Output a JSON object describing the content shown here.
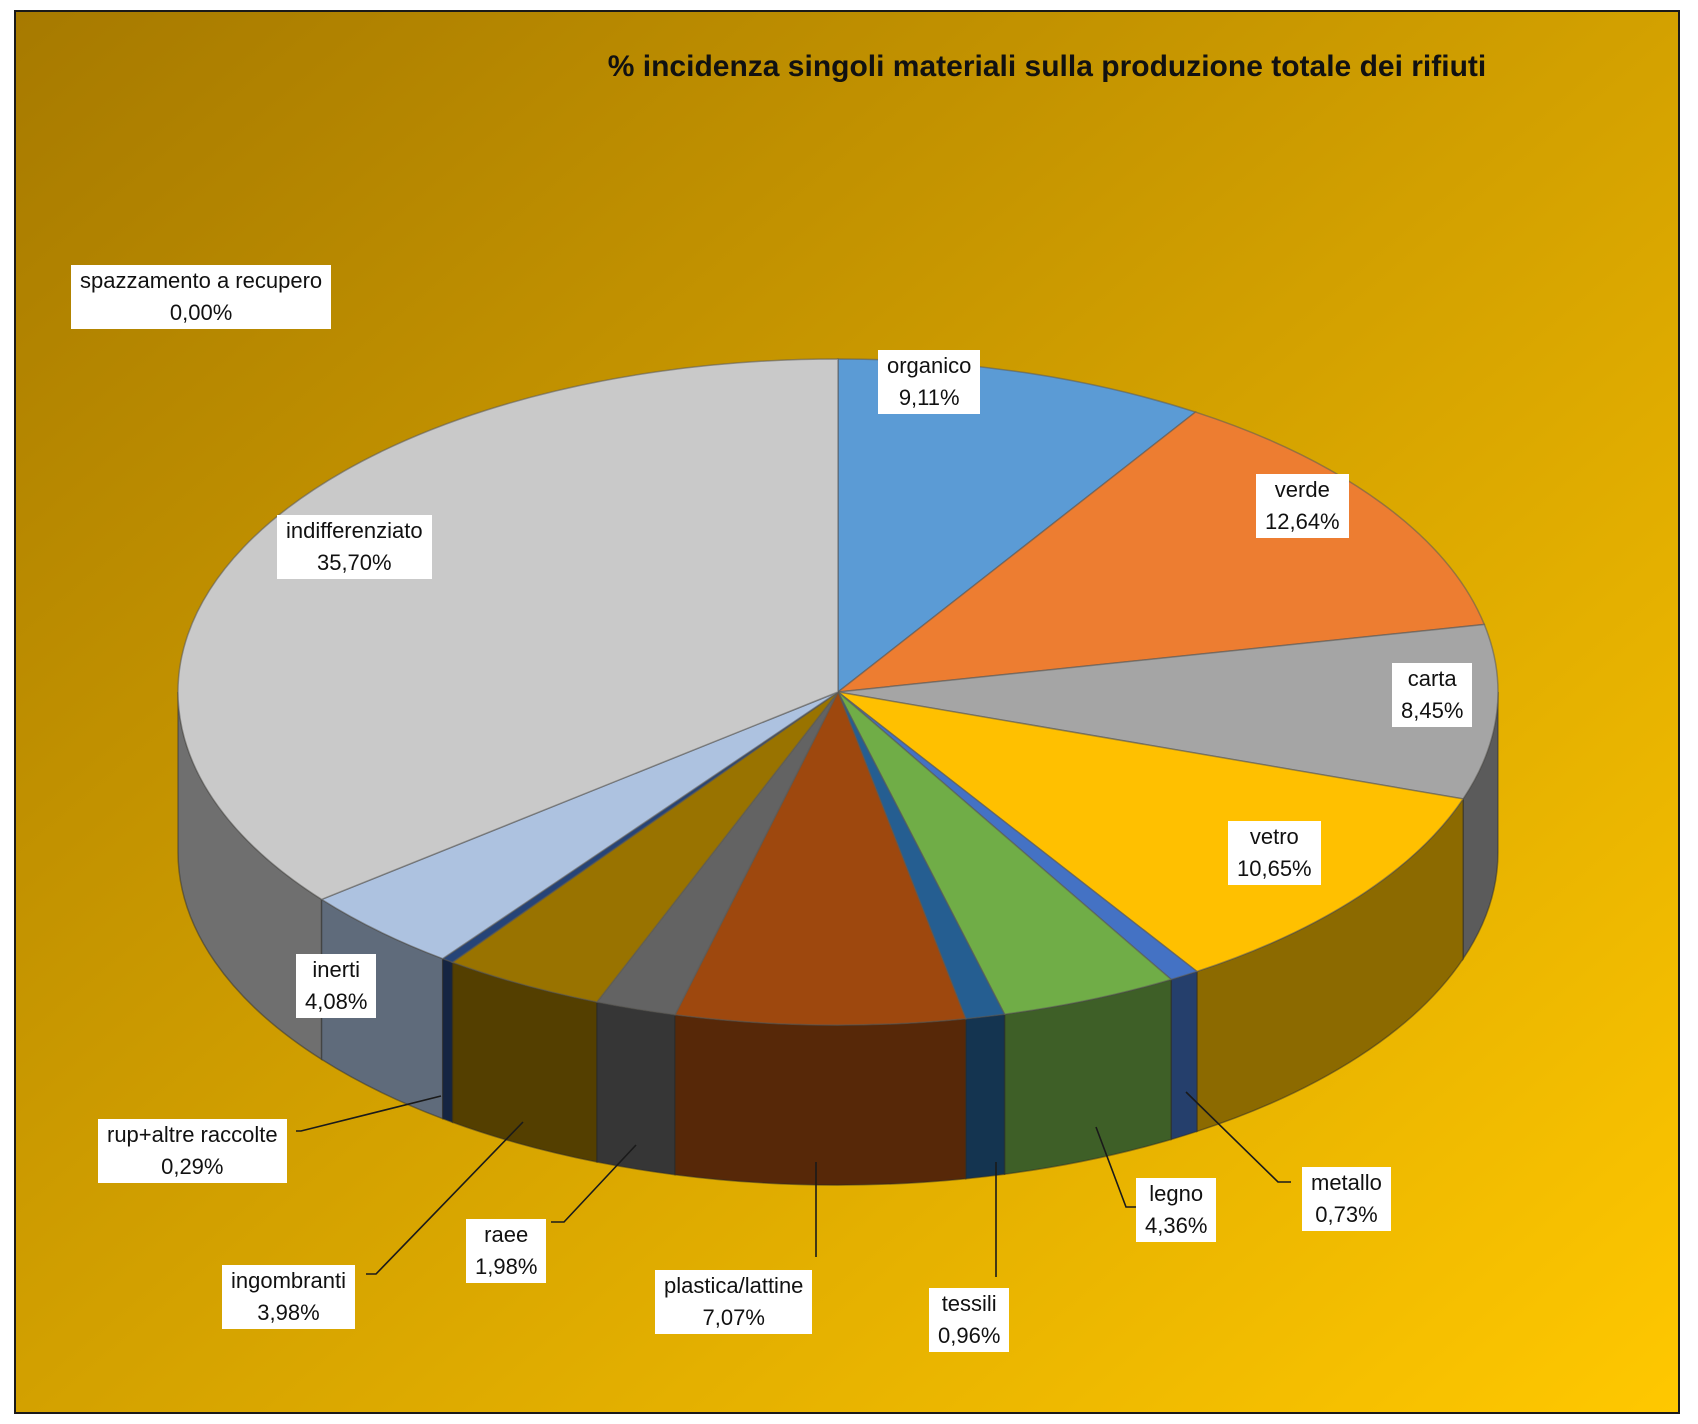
{
  "chart_data": {
    "type": "pie",
    "style": "3d",
    "title": "% incidenza singoli materiali sulla produzione totale dei rifiuti",
    "colors": {
      "background_dark": "#a77a00",
      "background_light": "#ffc800"
    },
    "slices": [
      {
        "label": "organico",
        "value": 9.11,
        "display": "9,11%",
        "color": "#5b9bd5"
      },
      {
        "label": "verde",
        "value": 12.64,
        "display": "12,64%",
        "color": "#ed7d31"
      },
      {
        "label": "carta",
        "value": 8.45,
        "display": "8,45%",
        "color": "#a5a5a5"
      },
      {
        "label": "vetro",
        "value": 10.65,
        "display": "10,65%",
        "color": "#ffc000"
      },
      {
        "label": "metallo",
        "value": 0.73,
        "display": "0,73%",
        "color": "#4472c4"
      },
      {
        "label": "legno",
        "value": 4.36,
        "display": "4,36%",
        "color": "#70ad47"
      },
      {
        "label": "tessili",
        "value": 0.96,
        "display": "0,96%",
        "color": "#255e91"
      },
      {
        "label": "plastica/lattine",
        "value": 7.07,
        "display": "7,07%",
        "color": "#9e480e"
      },
      {
        "label": "raee",
        "value": 1.98,
        "display": "1,98%",
        "color": "#636363"
      },
      {
        "label": "ingombranti",
        "value": 3.98,
        "display": "3,98%",
        "color": "#997300"
      },
      {
        "label": "rup+altre raccolte",
        "value": 0.29,
        "display": "0,29%",
        "color": "#264478"
      },
      {
        "label": "inerti",
        "value": 4.08,
        "display": "4,08%",
        "color": "#adc2e0"
      },
      {
        "label": "indifferenziato",
        "value": 35.7,
        "display": "35,70%",
        "color": "#c9c9c9"
      },
      {
        "label": "spazzamento a recupero",
        "value": 0.0,
        "display": "0,00%",
        "color": "#8fa9d6"
      }
    ]
  }
}
